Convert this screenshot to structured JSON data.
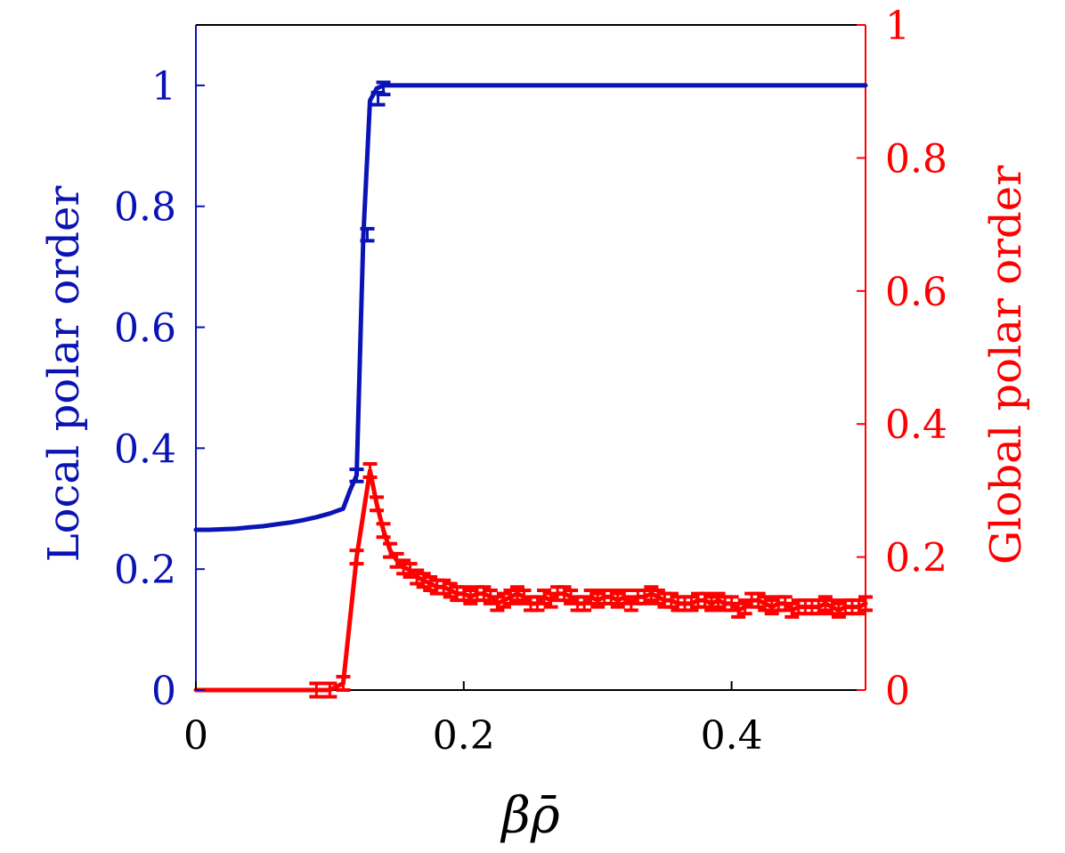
{
  "chart_data": {
    "type": "line",
    "title": "",
    "xlabel": "βρ̄",
    "ylabel_left": "Local polar order",
    "ylabel_right": "Global polar order",
    "xlim": [
      0,
      0.5
    ],
    "ylim_left": [
      0,
      1.1
    ],
    "ylim_right": [
      0,
      1
    ],
    "grid": false,
    "colors": {
      "left": "#0a14b4",
      "right": "#ff0000"
    },
    "xticks": [
      {
        "value": 0,
        "label": "0"
      },
      {
        "value": 0.2,
        "label": "0.2"
      },
      {
        "value": 0.4,
        "label": "0.4"
      }
    ],
    "yticks_left": [
      {
        "value": 0,
        "label": "0"
      },
      {
        "value": 0.2,
        "label": "0.2"
      },
      {
        "value": 0.4,
        "label": "0.4"
      },
      {
        "value": 0.6,
        "label": "0.6"
      },
      {
        "value": 0.8,
        "label": "0.8"
      },
      {
        "value": 1,
        "label": "1"
      }
    ],
    "yticks_right": [
      {
        "value": 0,
        "label": "0"
      },
      {
        "value": 0.2,
        "label": "0.2"
      },
      {
        "value": 0.4,
        "label": "0.4"
      },
      {
        "value": 0.6,
        "label": "0.6"
      },
      {
        "value": 0.8,
        "label": "0.8"
      },
      {
        "value": 1,
        "label": "1"
      }
    ],
    "series": [
      {
        "axis": "left",
        "color": "#0a14b4",
        "x": [
          0,
          0.01,
          0.02,
          0.03,
          0.04,
          0.05,
          0.06,
          0.07,
          0.08,
          0.09,
          0.1,
          0.11,
          0.115,
          0.12,
          0.125,
          0.13,
          0.135,
          0.14,
          0.15,
          0.2,
          0.3,
          0.4,
          0.5
        ],
        "y": [
          0.265,
          0.265,
          0.266,
          0.267,
          0.269,
          0.271,
          0.274,
          0.277,
          0.281,
          0.286,
          0.292,
          0.3,
          0.33,
          0.355,
          0.75,
          0.975,
          0.995,
          1.0,
          1.0,
          1.0,
          1.0,
          1.0,
          1.0
        ],
        "errorbars_x": [
          0.12,
          0.128,
          0.136,
          0.14
        ],
        "errorbars_y": [
          0.355,
          0.753,
          0.978,
          0.995
        ],
        "error": 0.01
      },
      {
        "axis": "right",
        "color": "#ff0000",
        "x": [
          0,
          0.01,
          0.02,
          0.03,
          0.04,
          0.05,
          0.06,
          0.07,
          0.08,
          0.09,
          0.1,
          0.11,
          0.12,
          0.13,
          0.135,
          0.14,
          0.145,
          0.15,
          0.155,
          0.16,
          0.165,
          0.17,
          0.175,
          0.18,
          0.185,
          0.19,
          0.195,
          0.2,
          0.205,
          0.21,
          0.215,
          0.22,
          0.225,
          0.23,
          0.235,
          0.24,
          0.245,
          0.25,
          0.255,
          0.26,
          0.265,
          0.27,
          0.275,
          0.28,
          0.285,
          0.29,
          0.295,
          0.3,
          0.305,
          0.31,
          0.315,
          0.32,
          0.325,
          0.33,
          0.335,
          0.34,
          0.345,
          0.35,
          0.355,
          0.36,
          0.365,
          0.37,
          0.375,
          0.38,
          0.385,
          0.39,
          0.395,
          0.4,
          0.405,
          0.41,
          0.415,
          0.42,
          0.425,
          0.43,
          0.435,
          0.44,
          0.445,
          0.45,
          0.455,
          0.46,
          0.465,
          0.47,
          0.475,
          0.48,
          0.485,
          0.49,
          0.495,
          0.5
        ],
        "y": [
          0,
          0,
          0,
          0,
          0,
          0,
          0,
          0,
          0,
          0,
          0,
          0.01,
          0.2,
          0.33,
          0.28,
          0.24,
          0.21,
          0.195,
          0.185,
          0.18,
          0.17,
          0.165,
          0.16,
          0.155,
          0.155,
          0.15,
          0.145,
          0.145,
          0.14,
          0.145,
          0.145,
          0.14,
          0.13,
          0.135,
          0.14,
          0.145,
          0.14,
          0.13,
          0.13,
          0.14,
          0.135,
          0.145,
          0.145,
          0.14,
          0.13,
          0.13,
          0.14,
          0.135,
          0.14,
          0.14,
          0.135,
          0.14,
          0.13,
          0.14,
          0.14,
          0.145,
          0.14,
          0.135,
          0.135,
          0.13,
          0.13,
          0.13,
          0.135,
          0.135,
          0.13,
          0.135,
          0.13,
          0.13,
          0.12,
          0.125,
          0.135,
          0.135,
          0.13,
          0.125,
          0.13,
          0.13,
          0.12,
          0.125,
          0.125,
          0.125,
          0.125,
          0.13,
          0.125,
          0.12,
          0.125,
          0.125,
          0.125,
          0.13
        ],
        "error": 0.01
      }
    ]
  }
}
